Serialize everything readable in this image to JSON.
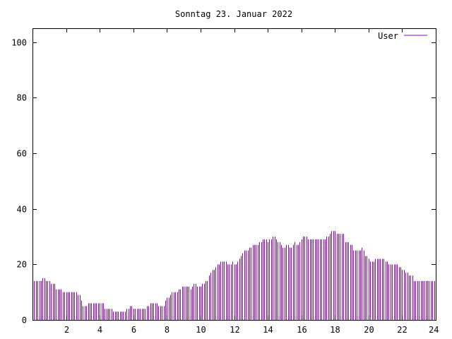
{
  "chart_data": {
    "type": "bar",
    "title": "Sonntag 23. Januar 2022",
    "xlabel": "",
    "ylabel": "",
    "xlim": [
      0,
      24
    ],
    "ylim": [
      0,
      105
    ],
    "x_ticks": [
      2,
      4,
      6,
      8,
      10,
      12,
      14,
      16,
      18,
      20,
      22,
      24
    ],
    "y_ticks": [
      0,
      20,
      40,
      60,
      80,
      100
    ],
    "grid": false,
    "legend_position": "top-right",
    "series": [
      {
        "name": "User",
        "color": "#9400d3",
        "sample_interval_hours": 0.1,
        "values": [
          14,
          14,
          14,
          14,
          14,
          14,
          15,
          15,
          14,
          14,
          14,
          13,
          13,
          13,
          11,
          11,
          11,
          11,
          10,
          10,
          10,
          10,
          10,
          10,
          10,
          10,
          10,
          9,
          9,
          7,
          5,
          5,
          5,
          6,
          6,
          6,
          6,
          6,
          6,
          6,
          6,
          6,
          6,
          4,
          4,
          4,
          4,
          4,
          3,
          3,
          3,
          3,
          3,
          3,
          3,
          3,
          4,
          4,
          5,
          5,
          4,
          4,
          4,
          4,
          4,
          4,
          4,
          4,
          5,
          5,
          6,
          6,
          6,
          6,
          6,
          5,
          5,
          5,
          5,
          7,
          8,
          8,
          9,
          10,
          10,
          10,
          10,
          11,
          11,
          12,
          12,
          12,
          12,
          12,
          11,
          12,
          13,
          13,
          12,
          12,
          12,
          13,
          13,
          14,
          14,
          16,
          17,
          18,
          18,
          19,
          20,
          20,
          21,
          21,
          21,
          21,
          20,
          20,
          20,
          21,
          20,
          20,
          21,
          22,
          23,
          24,
          25,
          25,
          25,
          26,
          26,
          27,
          27,
          27,
          27,
          28,
          28,
          29,
          29,
          29,
          28,
          29,
          29,
          30,
          30,
          29,
          28,
          28,
          27,
          26,
          26,
          27,
          27,
          26,
          26,
          27,
          28,
          27,
          27,
          28,
          29,
          30,
          30,
          30,
          29,
          29,
          29,
          29,
          29,
          29,
          29,
          29,
          29,
          29,
          29,
          30,
          30,
          31,
          32,
          32,
          32,
          31,
          31,
          31,
          31,
          31,
          28,
          28,
          28,
          27,
          27,
          25,
          25,
          25,
          25,
          25,
          26,
          25,
          23,
          23,
          22,
          21,
          21,
          21,
          22,
          22,
          22,
          22,
          22,
          22,
          21,
          21,
          20,
          20,
          20,
          20,
          20,
          20,
          19,
          19,
          18,
          18,
          17,
          17,
          16,
          16,
          16,
          14,
          14,
          14,
          14,
          14,
          14,
          14,
          14,
          14,
          14,
          14,
          14,
          14
        ]
      }
    ]
  }
}
